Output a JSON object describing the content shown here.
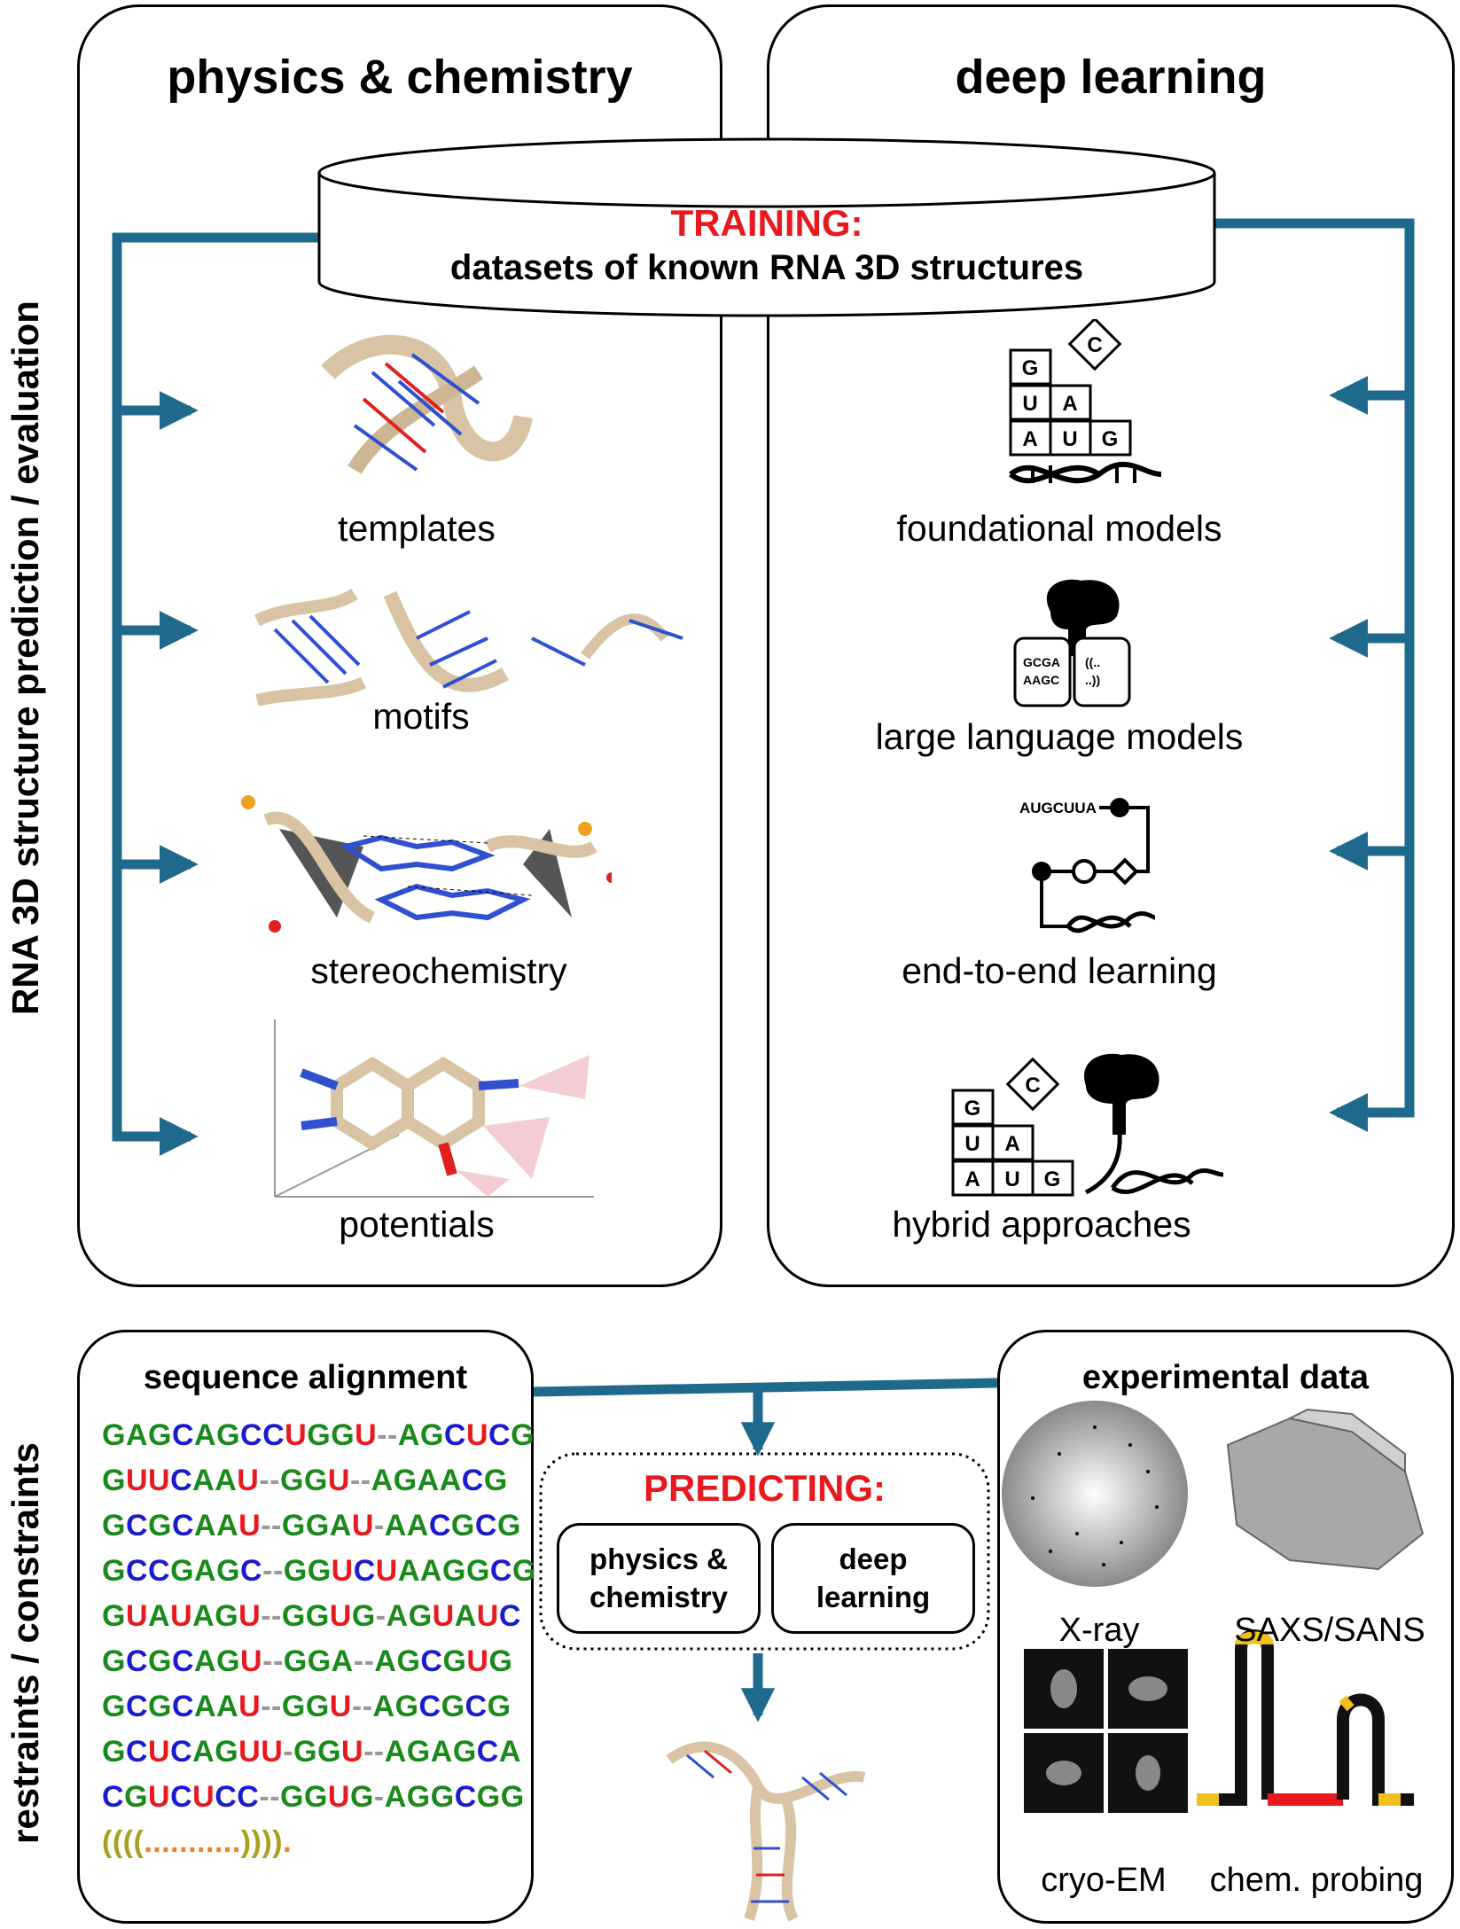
{
  "side_labels": {
    "top": "RNA 3D structure prediction / evaluation",
    "bottom": "restraints / constraints"
  },
  "physics_panel": {
    "heading": "physics & chemistry",
    "items": [
      "templates",
      "motifs",
      "stereochemistry",
      "potentials"
    ]
  },
  "deep_panel": {
    "heading": "deep learning",
    "items": [
      "foundational models",
      "large language models",
      "end-to-end learning",
      "hybrid approaches"
    ]
  },
  "training": {
    "title": "TRAINING:",
    "subtitle": "datasets of known RNA 3D structures"
  },
  "icons": {
    "blocks": [
      "G",
      "C",
      "U",
      "A",
      "A",
      "U",
      "G"
    ],
    "llm_box_left": [
      "GCGA",
      "AAGC"
    ],
    "llm_box_right": [
      "((..",
      "..))"
    ],
    "e2e_sequence": "AUGCUUA"
  },
  "alignment": {
    "title": "sequence alignment",
    "rows": [
      "GAGCAGCCUGGU--AGCUCG",
      "GUUCAAU--GGU--AGAACG",
      "GCGCAAU--GGAU-AACGCG",
      "GCCGAGC--GGUCUAAGGCG",
      "GUAUAGU--GGUG-AGUAUC",
      "GCGCAGU--GGA--AGCGUG",
      "GCGCAAU--GGU--AGCGCG",
      "GCUCAGUU-GGU--AGAGCA",
      "CGUCUCC--GGUG-AGGCGG"
    ],
    "dotbracket": "((((...........)))).",
    "colors": {
      "G": "#1a8a1a",
      "C": "#1a1ad0",
      "U": "#e8191e",
      "A": "#1a8a1a",
      "-": "#999999"
    }
  },
  "predicting": {
    "title": "PREDICTING:",
    "box_left": [
      "physics &",
      "chemistry"
    ],
    "box_right": [
      "deep",
      "learning"
    ]
  },
  "experimental": {
    "title": "experimental data",
    "items": [
      "X-ray",
      "SAXS/SANS",
      "cryo-EM",
      "chem. probing"
    ]
  },
  "colors": {
    "arrow": "#1f6a8c",
    "accent_red": "#e8191e",
    "ribbon": "#d8c4a4"
  }
}
